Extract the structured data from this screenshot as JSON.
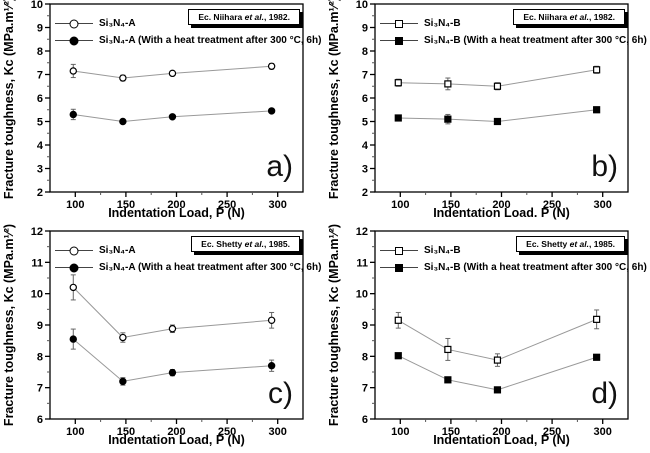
{
  "figure_title": "",
  "colors": {
    "background": "#ffffff",
    "axis": "#000000",
    "series_line": "#999999",
    "error_bar": "#666666",
    "marker": "#000000"
  },
  "chart_data": [
    {
      "id": "a",
      "type": "line",
      "panel_label": "a)",
      "reference": {
        "prefix": "Ec. Niihara ",
        "italic": "et al.",
        "suffix": ", 1982."
      },
      "xlabel": "Indentation Load, P (N)",
      "ylabel": "Fracture toughness, Kc (MPa.m¹⁄²)",
      "xlim": [
        75,
        325
      ],
      "ylim": [
        2,
        10
      ],
      "xticks": [
        100,
        150,
        200,
        250,
        300
      ],
      "yticks": [
        2,
        3,
        4,
        5,
        6,
        7,
        8,
        9,
        10
      ],
      "x_minor_step": 25,
      "y_minor_step": 0.5,
      "x": [
        98,
        147,
        196,
        294
      ],
      "series": [
        {
          "name": "Si₃N₄-A",
          "marker": "circle-open",
          "values": [
            7.15,
            6.85,
            7.05,
            7.35
          ],
          "errors": [
            0.28,
            0.12,
            0.1,
            0.12
          ]
        },
        {
          "name": "Si₃N₄-A (With a heat treatment after 300 °C, 6h)",
          "marker": "circle-filled",
          "values": [
            5.3,
            5.0,
            5.2,
            5.45
          ],
          "errors": [
            0.22,
            0.07,
            0.07,
            0.08
          ]
        }
      ]
    },
    {
      "id": "b",
      "type": "line",
      "panel_label": "b)",
      "reference": {
        "prefix": "Ec. Niihara ",
        "italic": "et al.",
        "suffix": ", 1982."
      },
      "xlabel": "Indentation Load. P (N)",
      "ylabel": "Fracture toughness, Kc (MPa.m¹⁄²)",
      "xlim": [
        75,
        325
      ],
      "ylim": [
        2,
        10
      ],
      "xticks": [
        100,
        150,
        200,
        250,
        300
      ],
      "yticks": [
        2,
        3,
        4,
        5,
        6,
        7,
        8,
        9,
        10
      ],
      "x_minor_step": 25,
      "y_minor_step": 0.5,
      "x": [
        98,
        147,
        196,
        294
      ],
      "series": [
        {
          "name": "Si₃N₄-B",
          "marker": "square-open",
          "values": [
            6.65,
            6.6,
            6.5,
            7.2
          ],
          "errors": [
            0.15,
            0.25,
            0.15,
            0.15
          ]
        },
        {
          "name": "Si₃N₄-B (With a heat treatment after 300 °C, 6h)",
          "marker": "square-filled",
          "values": [
            5.15,
            5.1,
            5.0,
            5.5
          ],
          "errors": [
            0.12,
            0.2,
            0.08,
            0.12
          ]
        }
      ]
    },
    {
      "id": "c",
      "type": "line",
      "panel_label": "c)",
      "reference": {
        "prefix": "Ec. Shetty ",
        "italic": "et al.",
        "suffix": ", 1985."
      },
      "xlabel": "Indentation Load, P (N)",
      "ylabel": "Fracture toughness, Kc (MPa.m¹⁄²)",
      "xlim": [
        75,
        325
      ],
      "ylim": [
        6,
        12
      ],
      "xticks": [
        100,
        150,
        200,
        250,
        300
      ],
      "yticks": [
        6,
        7,
        8,
        9,
        10,
        11,
        12
      ],
      "x_minor_step": 25,
      "y_minor_step": 0.5,
      "x": [
        98,
        147,
        196,
        294
      ],
      "series": [
        {
          "name": "Si₃N₄-A",
          "marker": "circle-open",
          "values": [
            10.2,
            8.6,
            8.88,
            9.15
          ],
          "errors": [
            0.4,
            0.15,
            0.12,
            0.25
          ]
        },
        {
          "name": "Si₃N₄-A (With a heat treatment after 300 °C, 6h)",
          "marker": "circle-filled",
          "values": [
            8.55,
            7.2,
            7.48,
            7.7
          ],
          "errors": [
            0.32,
            0.12,
            0.1,
            0.18
          ]
        }
      ]
    },
    {
      "id": "d",
      "type": "line",
      "panel_label": "d)",
      "reference": {
        "prefix": "Ec. Shetty ",
        "italic": "et al.",
        "suffix": ", 1985."
      },
      "xlabel": "Indentation Load, P (N)",
      "ylabel": "Fracture toughness, Kc (MPa.m¹⁄²)",
      "xlim": [
        75,
        325
      ],
      "ylim": [
        6,
        12
      ],
      "xticks": [
        100,
        150,
        200,
        250,
        300
      ],
      "yticks": [
        6,
        7,
        8,
        9,
        10,
        11,
        12
      ],
      "x_minor_step": 25,
      "y_minor_step": 0.5,
      "x": [
        98,
        147,
        196,
        294
      ],
      "series": [
        {
          "name": "Si₃N₄-B",
          "marker": "square-open",
          "values": [
            9.15,
            8.22,
            7.88,
            9.18
          ],
          "errors": [
            0.25,
            0.35,
            0.2,
            0.3
          ]
        },
        {
          "name": "Si₃N₄-B (With a heat treatment after 300 °C, 6h)",
          "marker": "square-filled",
          "values": [
            8.02,
            7.25,
            6.93,
            7.97
          ],
          "errors": [
            0,
            0,
            0,
            0
          ]
        }
      ]
    }
  ]
}
